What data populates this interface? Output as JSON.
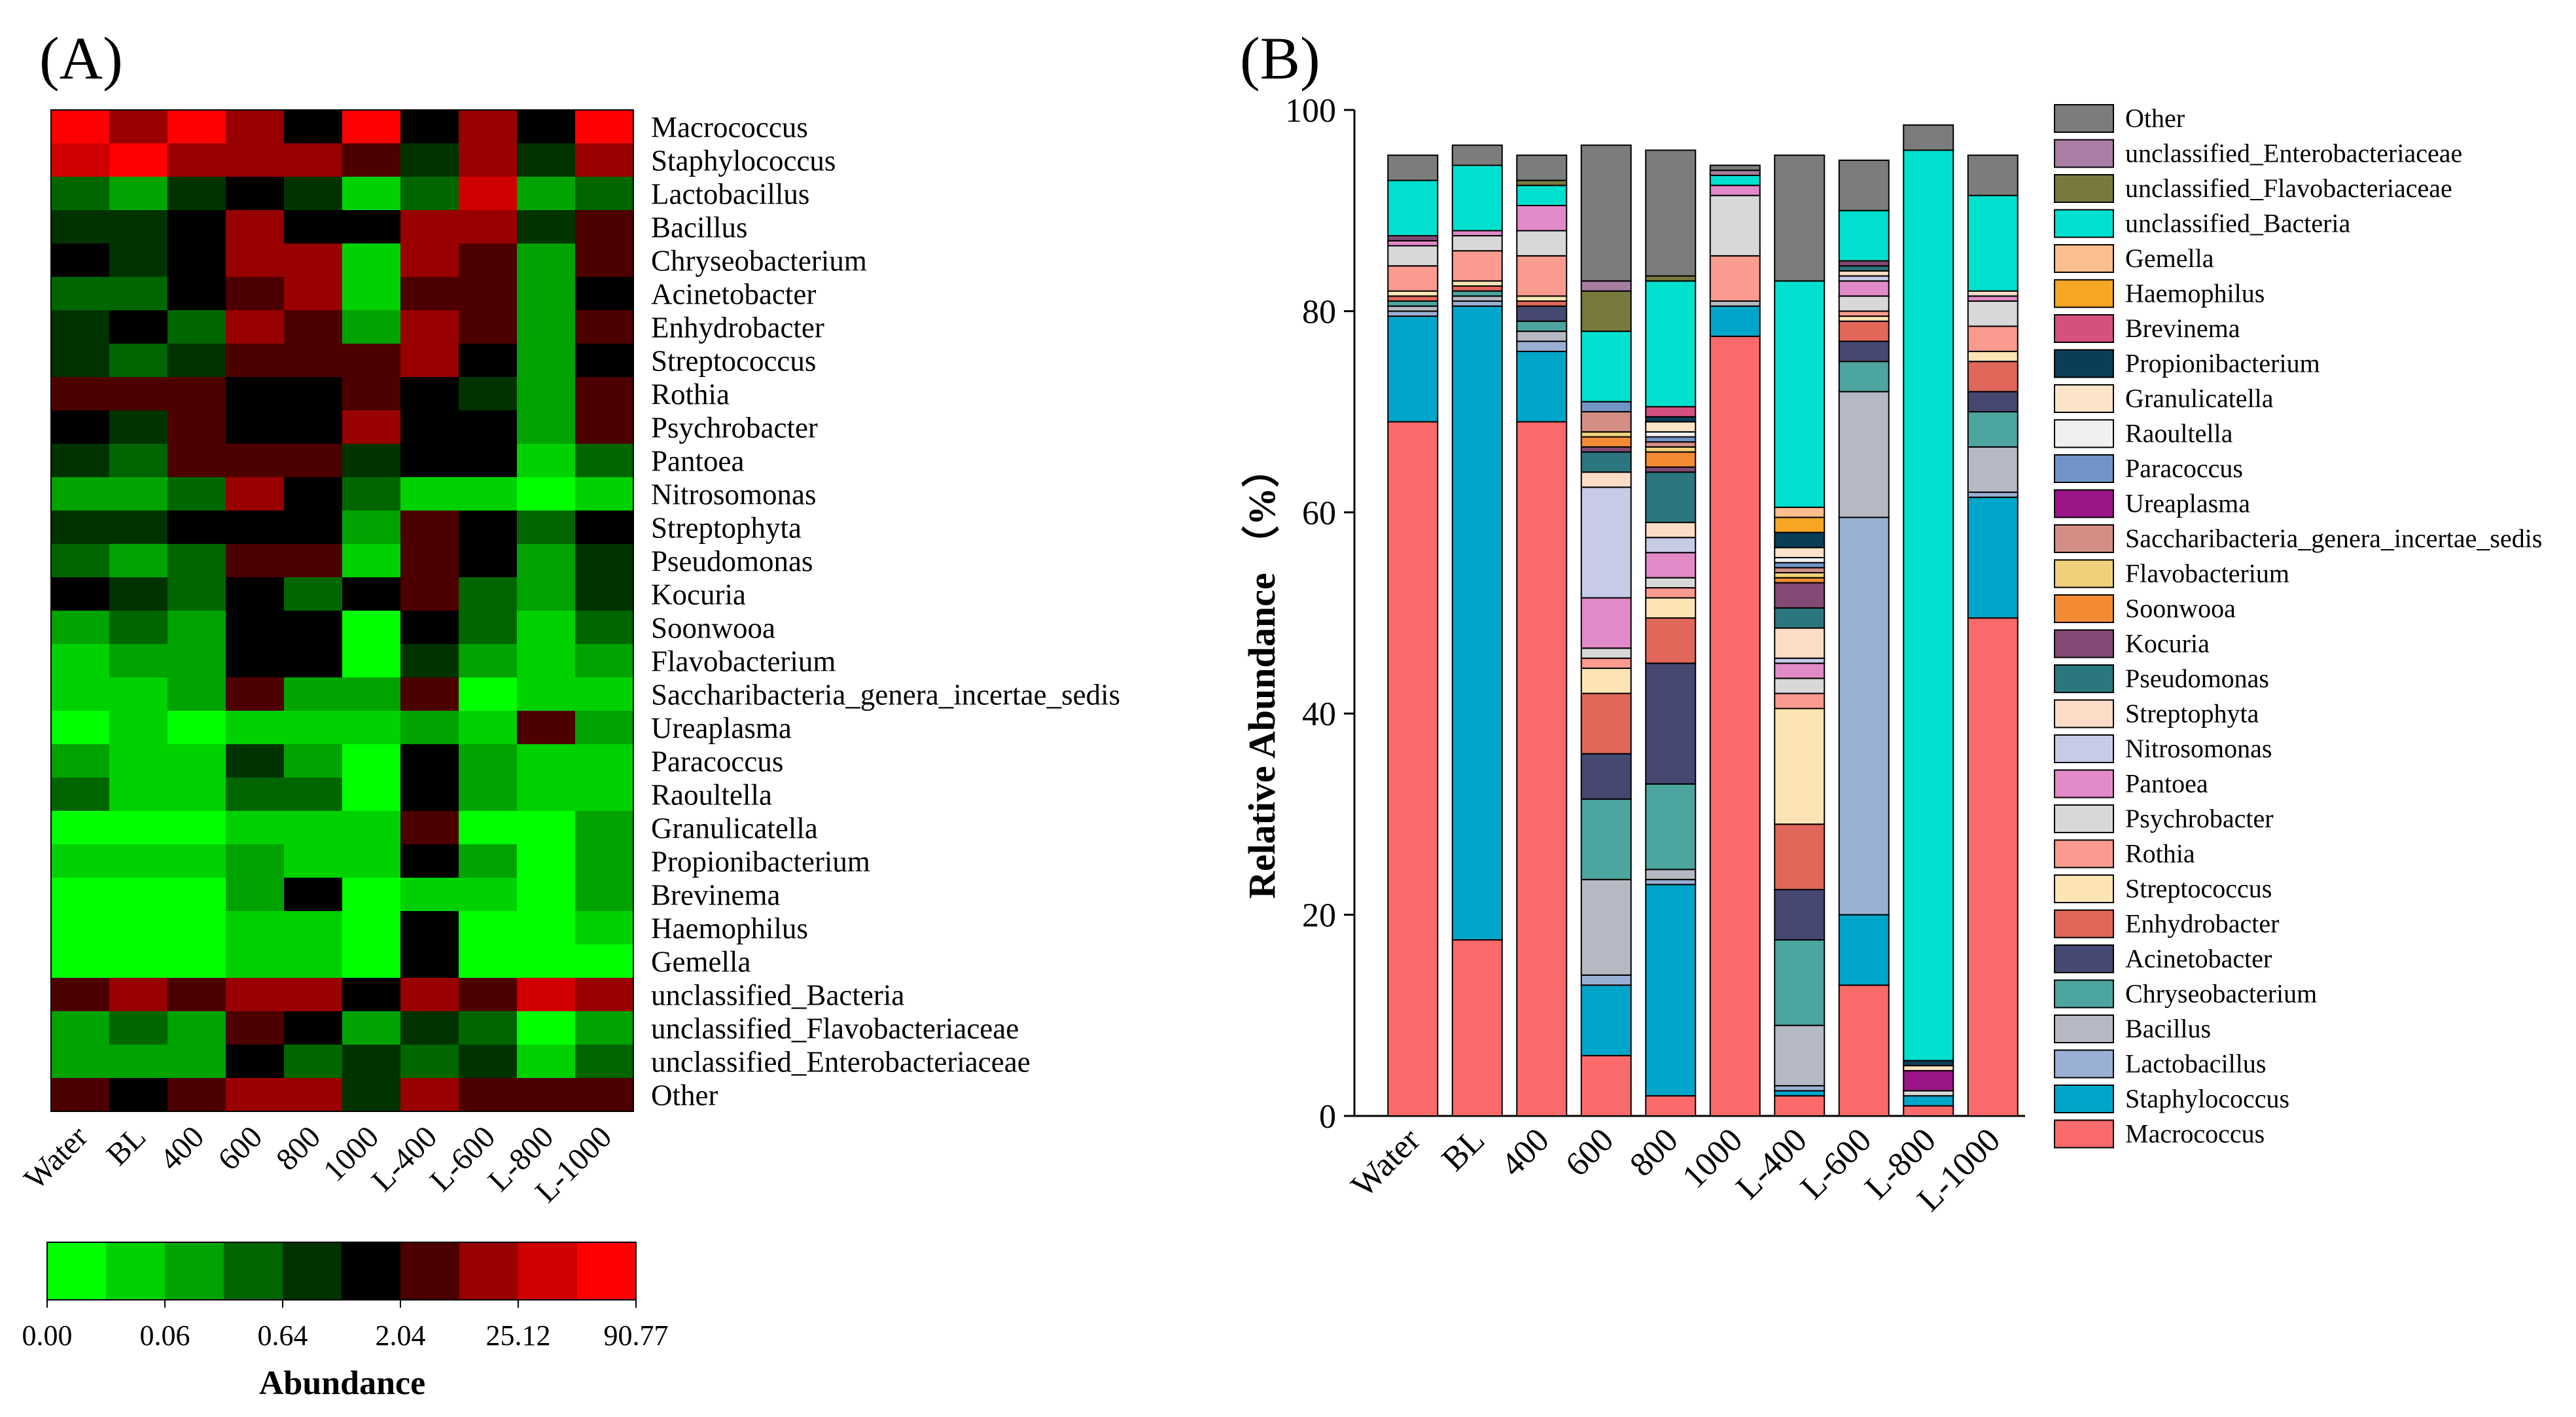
{
  "panel_labels": {
    "a": "(A)",
    "b": "(B)"
  },
  "chart_data": [
    {
      "type": "heatmap",
      "columns": [
        "Water",
        "BL",
        "400",
        "600",
        "800",
        "1000",
        "L-400",
        "L-600",
        "L-800",
        "L-1000"
      ],
      "rows": [
        "Macrococcus",
        "Staphylococcus",
        "Lactobacillus",
        "Bacillus",
        "Chryseobacterium",
        "Acinetobacter",
        "Enhydrobacter",
        "Streptococcus",
        "Rothia",
        "Psychrobacter",
        "Pantoea",
        "Nitrosomonas",
        "Streptophyta",
        "Pseudomonas",
        "Kocuria",
        "Soonwooa",
        "Flavobacterium",
        "Saccharibacteria_genera_incertae_sedis",
        "Ureaplasma",
        "Paracoccus",
        "Raoultella",
        "Granulicatella",
        "Propionibacterium",
        "Brevinema",
        "Haemophilus",
        "Gemella",
        "unclassified_Bacteria",
        "unclassified_Flavobacteriaceae",
        "unclassified_Enterobacteriaceae",
        "Other"
      ],
      "color_levels": [
        "#00ff00",
        "#00d100",
        "#00a300",
        "#006600",
        "#003300",
        "#000000",
        "#4d0000",
        "#990000",
        "#d10000",
        "#ff0000"
      ],
      "matrix": [
        [
          9,
          7,
          9,
          7,
          5,
          9,
          5,
          7,
          5,
          9
        ],
        [
          8,
          9,
          7,
          7,
          7,
          6,
          4,
          7,
          4,
          7
        ],
        [
          3,
          2,
          4,
          5,
          4,
          1,
          3,
          8,
          2,
          3
        ],
        [
          4,
          4,
          5,
          7,
          5,
          5,
          7,
          7,
          4,
          6
        ],
        [
          5,
          4,
          5,
          7,
          7,
          1,
          7,
          6,
          2,
          6
        ],
        [
          3,
          3,
          5,
          6,
          7,
          1,
          6,
          6,
          2,
          5
        ],
        [
          4,
          5,
          3,
          7,
          6,
          2,
          7,
          6,
          2,
          6
        ],
        [
          4,
          3,
          4,
          6,
          6,
          6,
          7,
          5,
          2,
          5
        ],
        [
          6,
          6,
          6,
          5,
          5,
          6,
          5,
          4,
          2,
          6
        ],
        [
          5,
          4,
          6,
          5,
          5,
          7,
          5,
          5,
          2,
          6
        ],
        [
          4,
          3,
          6,
          6,
          6,
          4,
          5,
          5,
          1,
          3
        ],
        [
          2,
          2,
          3,
          7,
          5,
          3,
          1,
          1,
          0,
          1
        ],
        [
          4,
          4,
          5,
          5,
          5,
          2,
          6,
          5,
          3,
          5
        ],
        [
          3,
          2,
          3,
          6,
          6,
          1,
          6,
          5,
          2,
          4
        ],
        [
          5,
          4,
          3,
          5,
          3,
          5,
          6,
          3,
          2,
          4
        ],
        [
          2,
          3,
          2,
          5,
          5,
          0,
          5,
          3,
          1,
          3
        ],
        [
          1,
          2,
          2,
          5,
          5,
          0,
          4,
          2,
          1,
          2
        ],
        [
          1,
          1,
          2,
          6,
          2,
          2,
          6,
          0,
          1,
          1
        ],
        [
          0,
          1,
          0,
          1,
          1,
          1,
          2,
          1,
          6,
          2
        ],
        [
          2,
          1,
          1,
          4,
          2,
          0,
          5,
          2,
          1,
          1
        ],
        [
          3,
          1,
          1,
          3,
          3,
          0,
          5,
          2,
          1,
          1
        ],
        [
          0,
          0,
          0,
          1,
          1,
          1,
          6,
          0,
          0,
          2
        ],
        [
          1,
          1,
          1,
          2,
          1,
          1,
          5,
          2,
          0,
          2
        ],
        [
          0,
          0,
          0,
          2,
          5,
          0,
          1,
          1,
          0,
          2
        ],
        [
          0,
          0,
          0,
          1,
          1,
          0,
          5,
          0,
          0,
          1
        ],
        [
          0,
          0,
          0,
          1,
          1,
          0,
          5,
          0,
          0,
          0
        ],
        [
          6,
          7,
          6,
          7,
          7,
          5,
          7,
          6,
          8,
          7
        ],
        [
          2,
          3,
          2,
          6,
          5,
          2,
          4,
          3,
          0,
          2
        ],
        [
          2,
          2,
          2,
          5,
          3,
          4,
          3,
          4,
          1,
          3
        ],
        [
          6,
          5,
          6,
          7,
          7,
          4,
          7,
          6,
          6,
          6
        ]
      ],
      "legend_title": "Abundance",
      "legend_ticks": [
        "0.00",
        "0.06",
        "0.64",
        "2.04",
        "25.12",
        "90.77"
      ]
    },
    {
      "type": "bar",
      "stacked": true,
      "categories": [
        "Water",
        "BL",
        "400",
        "600",
        "800",
        "1000",
        "L-400",
        "L-600",
        "L-800",
        "L-1000"
      ],
      "ylabel": "Relative Abundance （%）",
      "ylim": [
        0,
        100
      ],
      "yticks": [
        "0",
        "20",
        "40",
        "60",
        "80",
        "100"
      ],
      "series": [
        {
          "name": "Macrococcus",
          "color": "#fb6a6a",
          "values": [
            69,
            17.5,
            69,
            6,
            2,
            77.5,
            2,
            13,
            1,
            49.5
          ]
        },
        {
          "name": "Staphylococcus",
          "color": "#00a6c9",
          "values": [
            10.5,
            63,
            7,
            7,
            21,
            3,
            0.5,
            7,
            1,
            12
          ]
        },
        {
          "name": "Lactobacillus",
          "color": "#9aafd4",
          "values": [
            0.5,
            0.5,
            1,
            1,
            0.5,
            0,
            0.5,
            39.5,
            0,
            0.5
          ]
        },
        {
          "name": "Bacillus",
          "color": "#b6b8c3",
          "values": [
            0.5,
            0.5,
            1,
            9.5,
            1,
            0.5,
            6,
            12.5,
            0,
            4.5
          ]
        },
        {
          "name": "Chryseobacterium",
          "color": "#4ca59f",
          "values": [
            0.5,
            0.5,
            1,
            8,
            8.5,
            0,
            8.5,
            3,
            0,
            3.5
          ]
        },
        {
          "name": "Acinetobacter",
          "color": "#454870",
          "values": [
            0,
            0,
            1.5,
            4.5,
            12,
            0,
            5,
            2,
            0,
            2
          ]
        },
        {
          "name": "Enhydrobacter",
          "color": "#e1675a",
          "values": [
            0.5,
            0.5,
            0.5,
            6,
            4.5,
            0,
            6.5,
            2,
            0,
            3
          ]
        },
        {
          "name": "Streptococcus",
          "color": "#fde4b4",
          "values": [
            0.5,
            0.5,
            0.5,
            2.5,
            2,
            0,
            11.5,
            0.5,
            0,
            1
          ]
        },
        {
          "name": "Rothia",
          "color": "#fb9a8e",
          "values": [
            2.5,
            3,
            4,
            1,
            1,
            4.5,
            1.5,
            0.5,
            0,
            2.5
          ]
        },
        {
          "name": "Psychrobacter",
          "color": "#d8d8d8",
          "values": [
            2,
            1.5,
            2.5,
            1,
            1,
            6,
            1.5,
            1.5,
            0.5,
            2.5
          ]
        },
        {
          "name": "Pantoea",
          "color": "#e28ac8",
          "values": [
            0.5,
            0.5,
            2.5,
            5,
            2.5,
            1,
            1.5,
            1.5,
            0,
            0.5
          ]
        },
        {
          "name": "Nitrosomonas",
          "color": "#c6cce6",
          "values": [
            0,
            0,
            0,
            11,
            1.5,
            0,
            0.5,
            0.5,
            0,
            0
          ]
        },
        {
          "name": "Streptophyta",
          "color": "#fcdcc6",
          "values": [
            0,
            0,
            0,
            1.5,
            1.5,
            0,
            3,
            0.5,
            0,
            0.5
          ]
        },
        {
          "name": "Pseudomonas",
          "color": "#2b777f",
          "values": [
            0,
            0,
            0,
            2,
            5,
            0,
            2,
            0.5,
            0,
            0
          ]
        },
        {
          "name": "Kocuria",
          "color": "#824a74",
          "values": [
            0.5,
            0,
            0,
            0.5,
            0.5,
            0,
            2.5,
            0.5,
            0,
            0
          ]
        },
        {
          "name": "Soonwooa",
          "color": "#f38b35",
          "values": [
            0,
            0,
            0,
            1,
            1.5,
            0,
            0.5,
            0,
            0,
            0
          ]
        },
        {
          "name": "Flavobacterium",
          "color": "#f0d07a",
          "values": [
            0,
            0,
            0,
            0.5,
            0.5,
            0,
            0.5,
            0,
            0,
            0
          ]
        },
        {
          "name": "Saccharibacteria_genera_incertae_sedis",
          "color": "#d58e86",
          "values": [
            0,
            0,
            0,
            2,
            0.5,
            0,
            0.5,
            0,
            0,
            0
          ]
        },
        {
          "name": "Ureaplasma",
          "color": "#9a1586",
          "values": [
            0,
            0,
            0,
            0,
            0,
            0,
            0,
            0,
            2,
            0
          ]
        },
        {
          "name": "Paracoccus",
          "color": "#7194c8",
          "values": [
            0,
            0,
            0,
            1,
            0.5,
            0,
            0.5,
            0,
            0,
            0
          ]
        },
        {
          "name": "Raoultella",
          "color": "#f0f0f0",
          "values": [
            0,
            0,
            0,
            0,
            0.5,
            0,
            0.5,
            0,
            0,
            0
          ]
        },
        {
          "name": "Granulicatella",
          "color": "#fde4c8",
          "values": [
            0,
            0,
            0,
            0,
            1,
            0,
            1,
            0,
            0.5,
            0
          ]
        },
        {
          "name": "Propionibacterium",
          "color": "#0c3d56",
          "values": [
            0,
            0,
            0,
            0,
            0.5,
            0,
            1.5,
            0,
            0.5,
            0
          ]
        },
        {
          "name": "Brevinema",
          "color": "#d4507f",
          "values": [
            0,
            0,
            0,
            0,
            1,
            0,
            0,
            0,
            0,
            0
          ]
        },
        {
          "name": "Haemophilus",
          "color": "#f5a623",
          "values": [
            0,
            0,
            0,
            0,
            0,
            0,
            1.5,
            0,
            0,
            0
          ]
        },
        {
          "name": "Gemella",
          "color": "#fbbf8f",
          "values": [
            0,
            0,
            0,
            0,
            0,
            0,
            1,
            0,
            0,
            0
          ]
        },
        {
          "name": "unclassified_Bacteria",
          "color": "#00e0cf",
          "values": [
            5.5,
            6.5,
            2,
            7,
            12.5,
            1,
            22.5,
            5,
            90.5,
            9.5
          ]
        },
        {
          "name": "unclassified_Flavobacteriaceae",
          "color": "#78793e",
          "values": [
            0,
            0,
            0.5,
            4,
            0.5,
            0,
            0,
            0,
            0,
            0
          ]
        },
        {
          "name": "unclassified_Enterobacteriaceae",
          "color": "#a97da4",
          "values": [
            0,
            0,
            0,
            1,
            0,
            0.5,
            0,
            0,
            0,
            0
          ]
        },
        {
          "name": "Other",
          "color": "#7a7d7b",
          "values": [
            2.5,
            2,
            2.5,
            13.5,
            12.5,
            0.5,
            12.5,
            5,
            2.5,
            4
          ]
        }
      ],
      "legend_order": [
        "Other",
        "unclassified_Enterobacteriaceae",
        "unclassified_Flavobacteriaceae",
        "unclassified_Bacteria",
        "Gemella",
        "Haemophilus",
        "Brevinema",
        "Propionibacterium",
        "Granulicatella",
        "Raoultella",
        "Paracoccus",
        "Ureaplasma",
        "Saccharibacteria_genera_incertae_sedis",
        "Flavobacterium",
        "Soonwooa",
        "Kocuria",
        "Pseudomonas",
        "Streptophyta",
        "Nitrosomonas",
        "Pantoea",
        "Psychrobacter",
        "Rothia",
        "Streptococcus",
        "Enhydrobacter",
        "Acinetobacter",
        "Chryseobacterium",
        "Bacillus",
        "Lactobacillus",
        "Staphylococcus",
        "Macrococcus"
      ],
      "legend_position": "right"
    }
  ]
}
